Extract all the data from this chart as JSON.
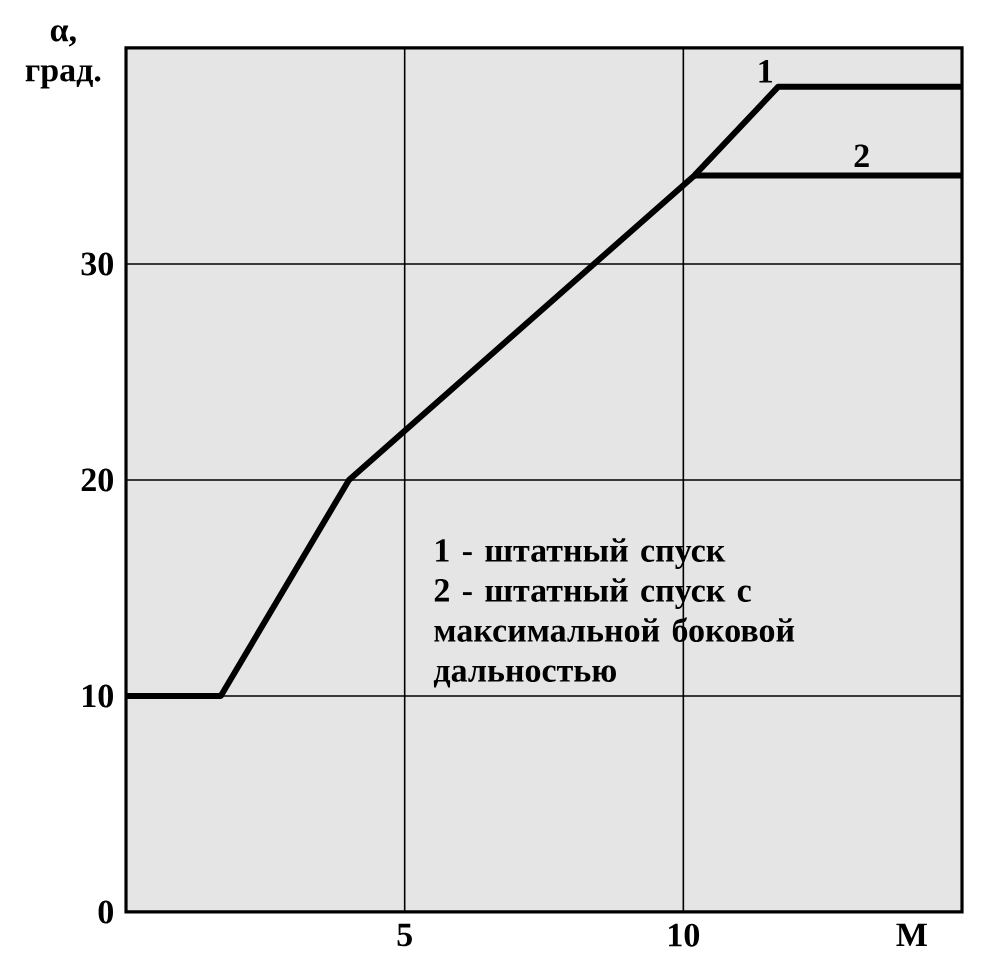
{
  "chart_data": {
    "type": "line",
    "xlabel": "M",
    "ylabel": "α, град.",
    "xlim": [
      0,
      15
    ],
    "ylim": [
      0,
      40
    ],
    "xticks": [
      5,
      10
    ],
    "yticks": [
      0,
      10,
      20,
      30
    ],
    "grid": true,
    "marker": "none",
    "line_style": "solid",
    "series": [
      {
        "name": "1",
        "color": "#000000",
        "x": [
          0,
          1.7,
          4.0,
          10.2,
          11.7,
          15
        ],
        "values": [
          10,
          10,
          20,
          34.1,
          38.2,
          38.2
        ]
      },
      {
        "name": "2",
        "color": "#000000",
        "x": [
          10.2,
          15
        ],
        "values": [
          34.1,
          34.1
        ]
      }
    ],
    "annotations": [
      "1 - штатный спуск",
      "2 - штатный спуск с максимальной боковой дальностью"
    ]
  }
}
